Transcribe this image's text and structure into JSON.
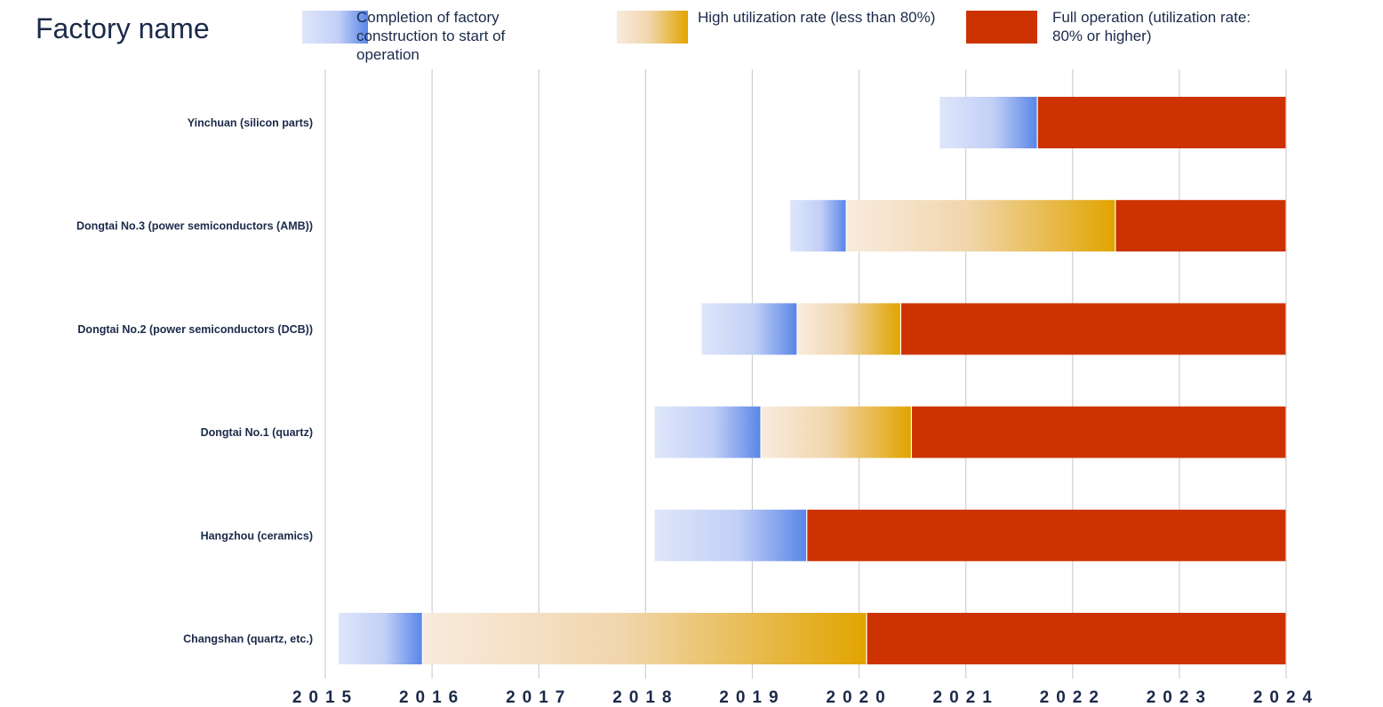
{
  "chart_data": {
    "type": "bar",
    "title": "Factory name",
    "orientation": "horizontal-stacked-timeline",
    "xlim": [
      2015,
      2024
    ],
    "x_ticks": [
      "2015",
      "2016",
      "2017",
      "2018",
      "2019",
      "2020",
      "2021",
      "2022",
      "2023",
      "2024"
    ],
    "grid": "vertical",
    "legend_position": "top",
    "series": [
      {
        "name": "Completion of factory construction to start of operation",
        "color_from": "#dfe6fb",
        "color_to": "#5a86e8"
      },
      {
        "name": "High utilization rate (less than 80%)",
        "color_from": "#f8ebdd",
        "color_to": "#e1a400"
      },
      {
        "name": "Full operation (utilization rate: 80% or higher)",
        "color": "#cc3300"
      }
    ],
    "categories": [
      "Yinchuan (silicon parts)",
      "Dongtai No.3 (power semiconductors (AMB))",
      "Dongtai No.2 (power semiconductors (DCB))",
      "Dongtai No.1 (quartz)",
      "Hangzhou (ceramics)",
      "Changshan (quartz, etc.)"
    ],
    "rows": [
      {
        "segments": [
          {
            "series": 0,
            "start": 2020.75,
            "end": 2021.67
          },
          {
            "series": 2,
            "start": 2021.67,
            "end": 2024.0
          }
        ]
      },
      {
        "segments": [
          {
            "series": 0,
            "start": 2019.35,
            "end": 2019.88
          },
          {
            "series": 1,
            "start": 2019.88,
            "end": 2022.4
          },
          {
            "series": 2,
            "start": 2022.4,
            "end": 2024.0
          }
        ]
      },
      {
        "segments": [
          {
            "series": 0,
            "start": 2018.52,
            "end": 2019.42
          },
          {
            "series": 1,
            "start": 2019.42,
            "end": 2020.39
          },
          {
            "series": 2,
            "start": 2020.39,
            "end": 2024.0
          }
        ]
      },
      {
        "segments": [
          {
            "series": 0,
            "start": 2018.08,
            "end": 2019.08
          },
          {
            "series": 1,
            "start": 2019.08,
            "end": 2020.49
          },
          {
            "series": 2,
            "start": 2020.49,
            "end": 2024.0
          }
        ]
      },
      {
        "segments": [
          {
            "series": 0,
            "start": 2018.08,
            "end": 2019.51
          },
          {
            "series": 2,
            "start": 2019.51,
            "end": 2024.0
          }
        ]
      },
      {
        "segments": [
          {
            "series": 0,
            "start": 2015.12,
            "end": 2015.91
          },
          {
            "series": 1,
            "start": 2015.91,
            "end": 2020.07
          },
          {
            "series": 2,
            "start": 2020.07,
            "end": 2024.0
          }
        ]
      }
    ]
  }
}
